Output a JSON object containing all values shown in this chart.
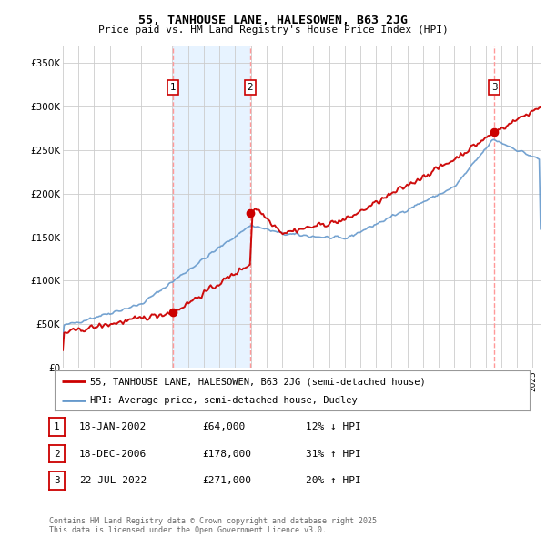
{
  "title1": "55, TANHOUSE LANE, HALESOWEN, B63 2JG",
  "title2": "Price paid vs. HM Land Registry's House Price Index (HPI)",
  "ylabel_ticks": [
    "£0",
    "£50K",
    "£100K",
    "£150K",
    "£200K",
    "£250K",
    "£300K",
    "£350K"
  ],
  "ytick_values": [
    0,
    50000,
    100000,
    150000,
    200000,
    250000,
    300000,
    350000
  ],
  "ylim": [
    0,
    370000
  ],
  "xlim_start": 1995.0,
  "xlim_end": 2025.5,
  "price_color": "#cc0000",
  "hpi_color": "#6699cc",
  "shade_color": "#ddeeff",
  "vline_color": "#ff9999",
  "sales": [
    {
      "date_num": 2002.05,
      "price": 64000,
      "label": "1"
    },
    {
      "date_num": 2006.97,
      "price": 178000,
      "label": "2"
    },
    {
      "date_num": 2022.55,
      "price": 271000,
      "label": "3"
    }
  ],
  "legend_line1": "55, TANHOUSE LANE, HALESOWEN, B63 2JG (semi-detached house)",
  "legend_line2": "HPI: Average price, semi-detached house, Dudley",
  "table_rows": [
    {
      "num": "1",
      "date": "18-JAN-2002",
      "price": "£64,000",
      "hpi": "12% ↓ HPI"
    },
    {
      "num": "2",
      "date": "18-DEC-2006",
      "price": "£178,000",
      "hpi": "31% ↑ HPI"
    },
    {
      "num": "3",
      "date": "22-JUL-2022",
      "price": "£271,000",
      "hpi": "20% ↑ HPI"
    }
  ],
  "footer": "Contains HM Land Registry data © Crown copyright and database right 2025.\nThis data is licensed under the Open Government Licence v3.0.",
  "background_color": "#ffffff",
  "grid_color": "#cccccc"
}
